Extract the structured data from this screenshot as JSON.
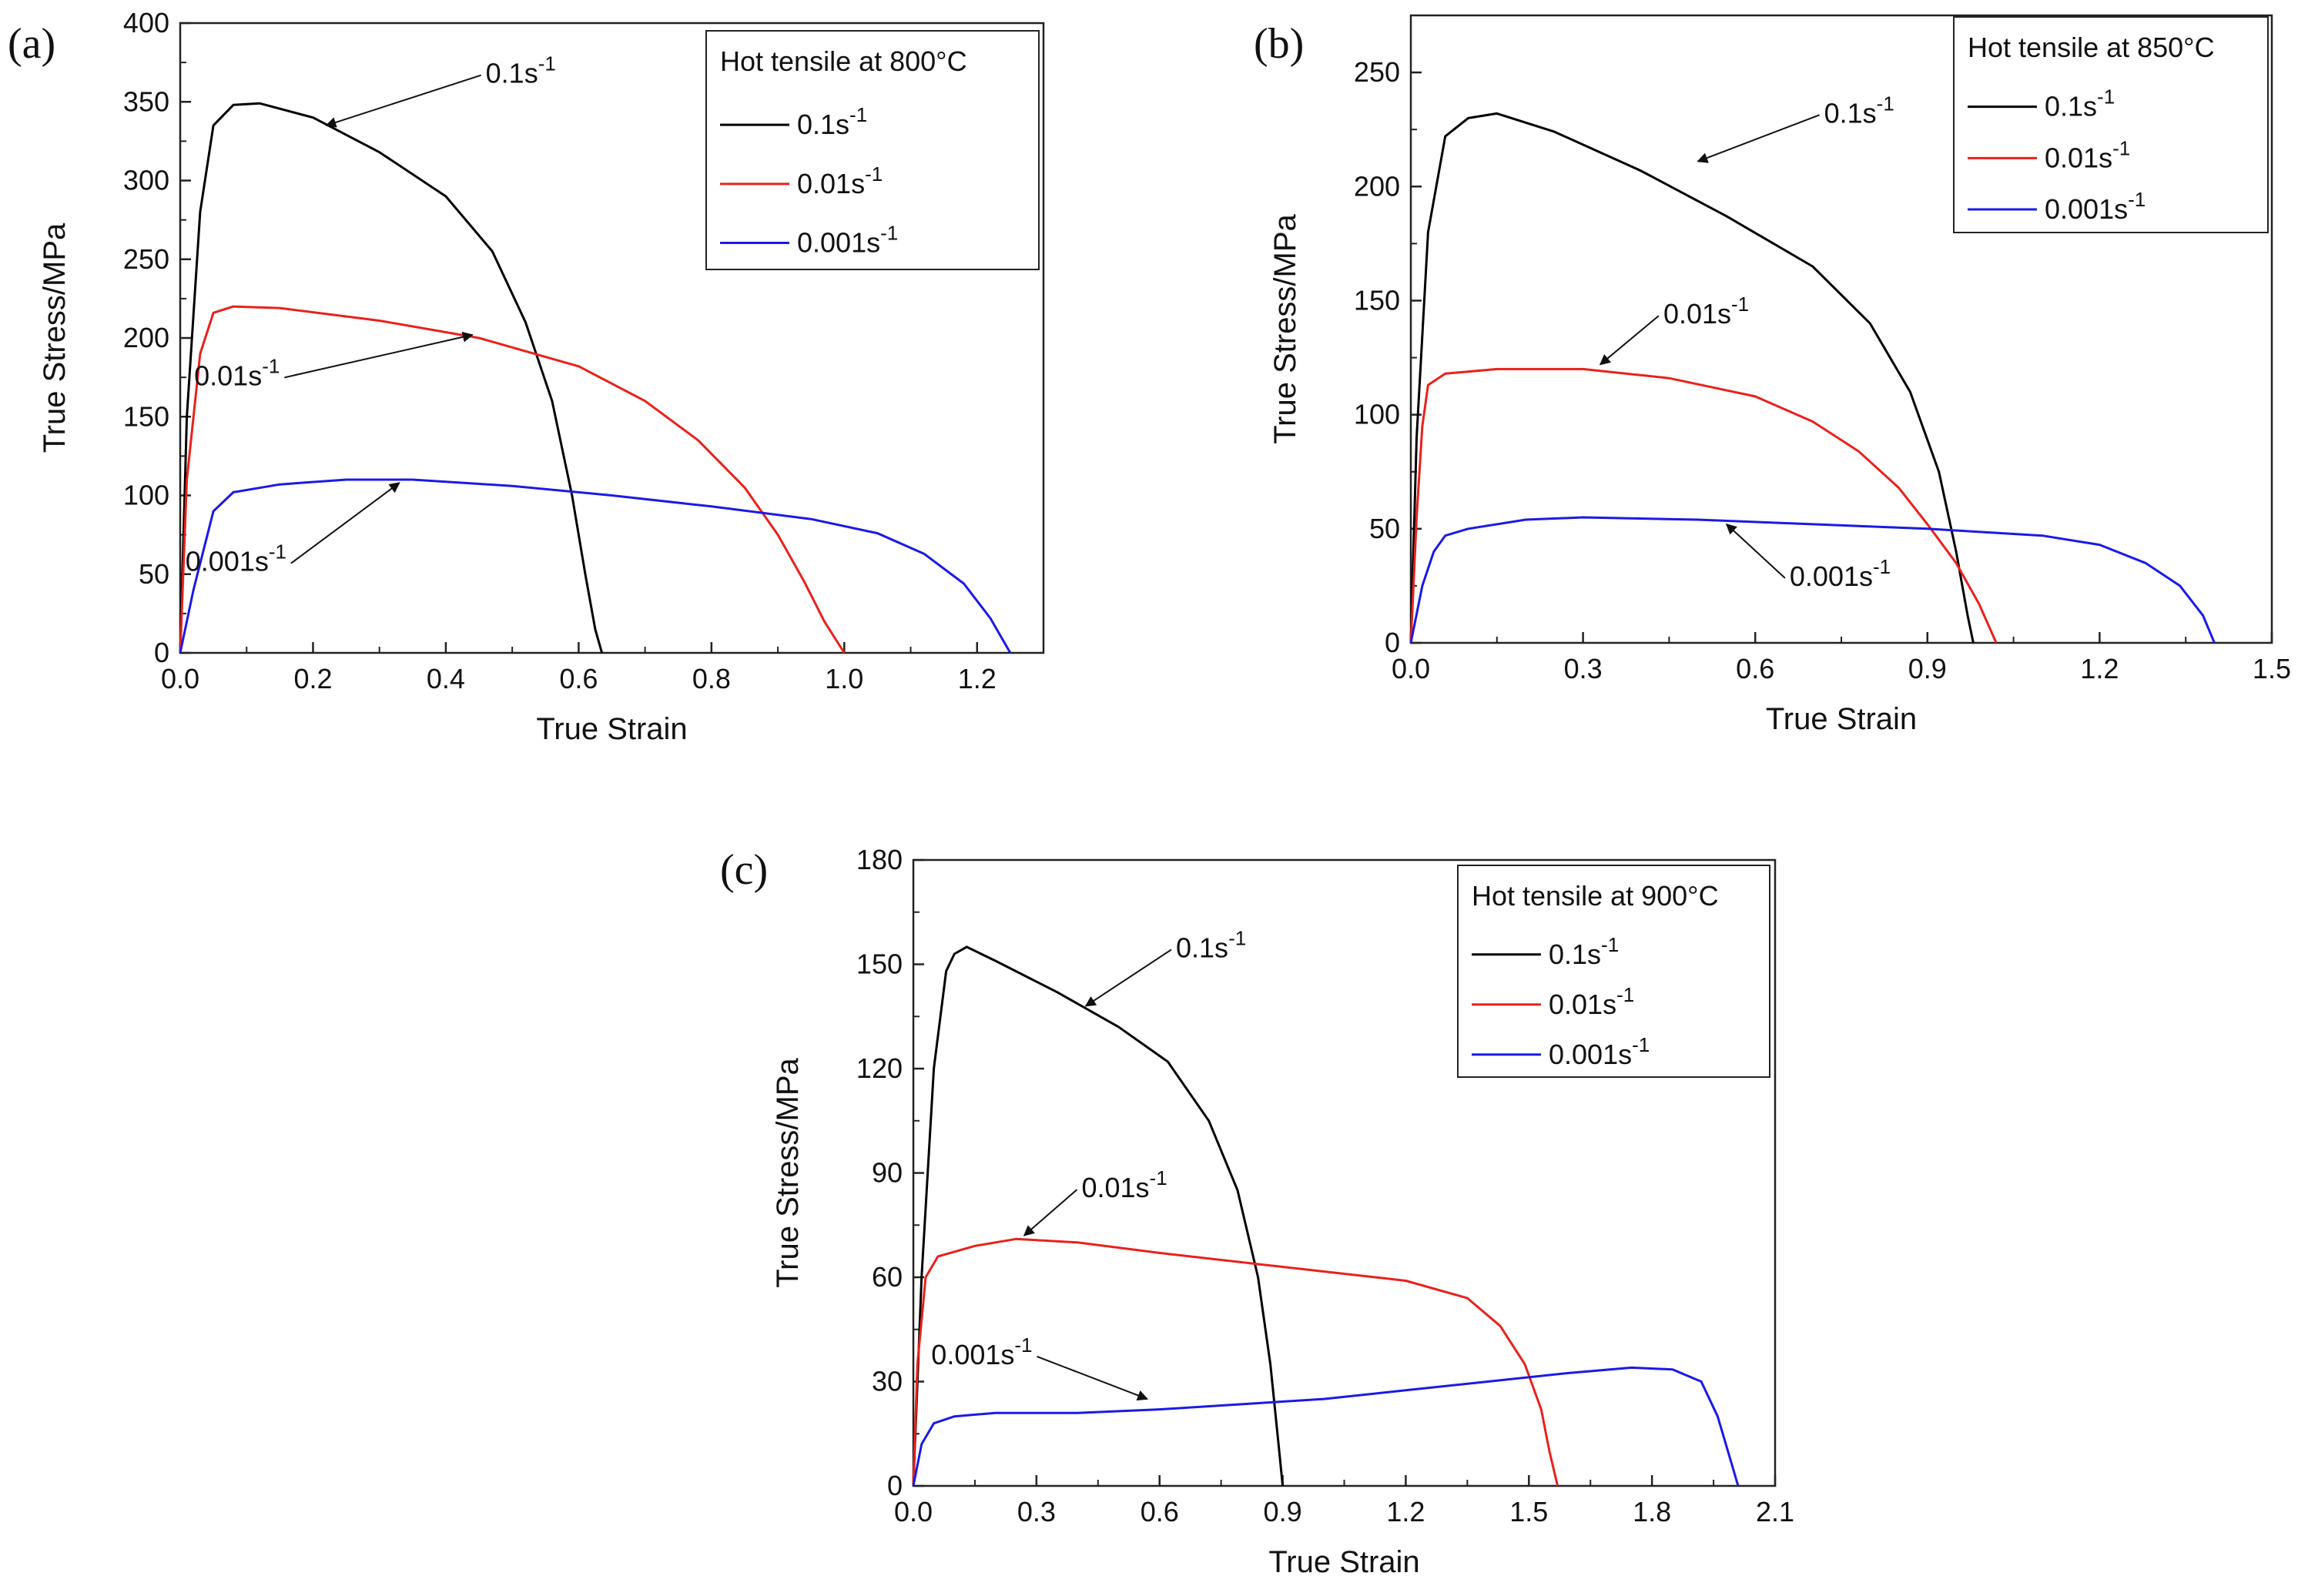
{
  "chart_data": [
    {
      "type": "line",
      "panel_label": "(a)",
      "title": "Hot tensile at 800°C",
      "xlabel": "True Strain",
      "ylabel": "True Stress/MPa",
      "xlim": [
        0,
        1.3
      ],
      "ylim": [
        0,
        400
      ],
      "xticks": [
        "0.0",
        "0.2",
        "0.4",
        "0.6",
        "0.8",
        "1.0",
        "1.2"
      ],
      "yticks": [
        "0",
        "50",
        "100",
        "150",
        "200",
        "250",
        "300",
        "350",
        "400"
      ],
      "legend_position": "top-right",
      "series": [
        {
          "name": "0.1s",
          "sup": "-1",
          "color": "#000000",
          "x": [
            0,
            0.01,
            0.03,
            0.05,
            0.08,
            0.12,
            0.2,
            0.3,
            0.4,
            0.47,
            0.52,
            0.56,
            0.59,
            0.61,
            0.625,
            0.635
          ],
          "y": [
            0,
            150,
            280,
            335,
            348,
            349,
            340,
            318,
            290,
            255,
            210,
            160,
            100,
            50,
            15,
            0
          ]
        },
        {
          "name": "0.01s",
          "sup": "-1",
          "color": "#e8211c",
          "x": [
            0,
            0.01,
            0.03,
            0.05,
            0.08,
            0.15,
            0.3,
            0.45,
            0.6,
            0.7,
            0.78,
            0.85,
            0.9,
            0.94,
            0.97,
            1.0
          ],
          "y": [
            0,
            110,
            190,
            216,
            220,
            219,
            211,
            200,
            182,
            160,
            135,
            105,
            75,
            45,
            20,
            0
          ]
        },
        {
          "name": "0.001s",
          "sup": "-1",
          "color": "#1a1ae6",
          "x": [
            0,
            0.02,
            0.05,
            0.08,
            0.15,
            0.25,
            0.35,
            0.5,
            0.65,
            0.8,
            0.95,
            1.05,
            1.12,
            1.18,
            1.22,
            1.25
          ],
          "y": [
            0,
            40,
            90,
            102,
            107,
            110,
            110,
            106,
            100,
            93,
            85,
            76,
            63,
            44,
            22,
            0
          ]
        }
      ],
      "annotations": [
        {
          "text": "0.1s",
          "sup": "-1",
          "x": 0.46,
          "y": 362,
          "target_x": 0.22,
          "target_y": 335
        },
        {
          "text": "0.01s",
          "sup": "-1",
          "x": 0.15,
          "y": 170,
          "target_x": 0.44,
          "target_y": 202
        },
        {
          "text": "0.001s",
          "sup": "-1",
          "x": 0.16,
          "y": 52,
          "target_x": 0.33,
          "target_y": 108
        }
      ]
    },
    {
      "type": "line",
      "panel_label": "(b)",
      "title": "Hot tensile at 850°C",
      "xlabel": "True Strain",
      "ylabel": "True Stress/MPa",
      "xlim": [
        0,
        1.5
      ],
      "ylim": [
        0,
        275
      ],
      "xticks": [
        "0.0",
        "0.3",
        "0.6",
        "0.9",
        "1.2",
        "1.5"
      ],
      "yticks": [
        "0",
        "50",
        "100",
        "150",
        "200",
        "250"
      ],
      "legend_position": "top-right",
      "series": [
        {
          "name": "0.1s",
          "sup": "-1",
          "color": "#000000",
          "x": [
            0,
            0.01,
            0.03,
            0.06,
            0.1,
            0.15,
            0.25,
            0.4,
            0.55,
            0.7,
            0.8,
            0.87,
            0.92,
            0.95,
            0.97,
            0.98
          ],
          "y": [
            0,
            90,
            180,
            222,
            230,
            232,
            224,
            207,
            187,
            165,
            140,
            110,
            75,
            40,
            12,
            0
          ]
        },
        {
          "name": "0.01s",
          "sup": "-1",
          "color": "#e8211c",
          "x": [
            0,
            0.01,
            0.02,
            0.03,
            0.06,
            0.15,
            0.3,
            0.45,
            0.6,
            0.7,
            0.78,
            0.85,
            0.9,
            0.95,
            0.99,
            1.02
          ],
          "y": [
            0,
            55,
            95,
            113,
            118,
            120,
            120,
            116,
            108,
            97,
            84,
            68,
            52,
            35,
            17,
            0
          ]
        },
        {
          "name": "0.001s",
          "sup": "-1",
          "color": "#1a1ae6",
          "x": [
            0,
            0.02,
            0.04,
            0.06,
            0.1,
            0.2,
            0.3,
            0.5,
            0.7,
            0.9,
            1.1,
            1.2,
            1.28,
            1.34,
            1.38,
            1.4
          ],
          "y": [
            0,
            25,
            40,
            47,
            50,
            54,
            55,
            54,
            52,
            50,
            47,
            43,
            35,
            25,
            12,
            0
          ]
        }
      ],
      "annotations": [
        {
          "text": "0.1s",
          "sup": "-1",
          "x": 0.72,
          "y": 228,
          "target_x": 0.5,
          "target_y": 211
        },
        {
          "text": "0.01s",
          "sup": "-1",
          "x": 0.44,
          "y": 140,
          "target_x": 0.33,
          "target_y": 122
        },
        {
          "text": "0.001s",
          "sup": "-1",
          "x": 0.66,
          "y": 25,
          "target_x": 0.55,
          "target_y": 52
        }
      ]
    },
    {
      "type": "line",
      "panel_label": "(c)",
      "title": "Hot tensile at 900°C",
      "xlabel": "True Strain",
      "ylabel": "True Stress/MPa",
      "xlim": [
        0,
        2.1
      ],
      "ylim": [
        0,
        180
      ],
      "xticks": [
        "0.0",
        "0.3",
        "0.6",
        "0.9",
        "1.2",
        "1.5",
        "1.8",
        "2.1"
      ],
      "yticks": [
        "0",
        "30",
        "60",
        "90",
        "120",
        "150",
        "180"
      ],
      "legend_position": "top-right",
      "series": [
        {
          "name": "0.1s",
          "sup": "-1",
          "color": "#000000",
          "x": [
            0,
            0.02,
            0.05,
            0.08,
            0.1,
            0.13,
            0.2,
            0.35,
            0.5,
            0.62,
            0.72,
            0.79,
            0.84,
            0.87,
            0.89,
            0.9
          ],
          "y": [
            0,
            60,
            120,
            148,
            153,
            155,
            151,
            142,
            132,
            122,
            105,
            85,
            60,
            35,
            12,
            0
          ]
        },
        {
          "name": "0.01s",
          "sup": "-1",
          "color": "#e8211c",
          "x": [
            0,
            0.01,
            0.03,
            0.06,
            0.15,
            0.25,
            0.4,
            0.6,
            0.9,
            1.2,
            1.35,
            1.43,
            1.49,
            1.53,
            1.55,
            1.57
          ],
          "y": [
            0,
            35,
            60,
            66,
            69,
            71,
            70,
            67,
            63,
            59,
            54,
            46,
            35,
            22,
            10,
            0
          ]
        },
        {
          "name": "0.001s",
          "sup": "-1",
          "color": "#1a1ae6",
          "x": [
            0,
            0.02,
            0.05,
            0.1,
            0.2,
            0.4,
            0.6,
            0.8,
            1.0,
            1.2,
            1.4,
            1.6,
            1.75,
            1.85,
            1.92,
            1.96,
            1.99,
            2.01
          ],
          "y": [
            0,
            12,
            18,
            20,
            21,
            21,
            22,
            23.5,
            25,
            27.5,
            30,
            32.5,
            34,
            33.5,
            30,
            20,
            8,
            0
          ]
        }
      ],
      "annotations": [
        {
          "text": "0.1s",
          "sup": "-1",
          "x": 0.64,
          "y": 152,
          "target_x": 0.42,
          "target_y": 138
        },
        {
          "text": "0.01s",
          "sup": "-1",
          "x": 0.41,
          "y": 83,
          "target_x": 0.27,
          "target_y": 72
        },
        {
          "text": "0.001s",
          "sup": "-1",
          "x": 0.29,
          "y": 35,
          "target_x": 0.57,
          "target_y": 25
        }
      ]
    }
  ]
}
